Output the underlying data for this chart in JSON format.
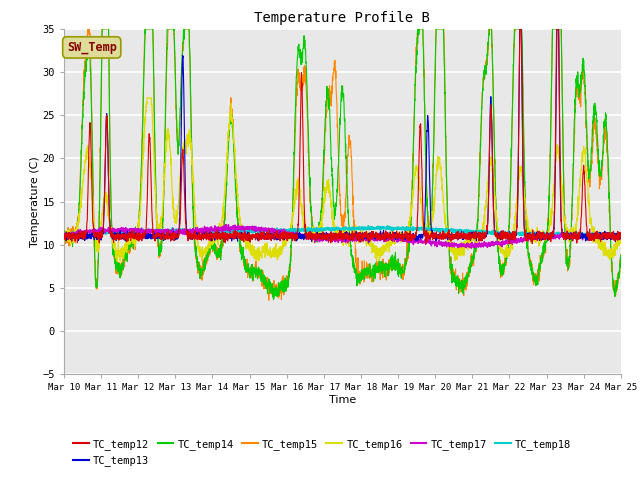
{
  "title": "Temperature Profile B",
  "xlabel": "Time",
  "ylabel": "Temperature (C)",
  "ylim": [
    -5,
    35
  ],
  "xlim": [
    10,
    25
  ],
  "background_color": "#e8e8e8",
  "grid_color": "white",
  "series_colors": {
    "TC_temp12": "#dd0000",
    "TC_temp13": "#0000cc",
    "TC_temp14": "#00cc00",
    "TC_temp15": "#ff8800",
    "TC_temp16": "#dddd00",
    "TC_temp17": "#cc00cc",
    "TC_temp18": "#00cccc"
  },
  "sw_temp_box_facecolor": "#dddd99",
  "sw_temp_box_edgecolor": "#999900",
  "sw_temp_text_color": "#880000",
  "annotation_label": "SW_Temp",
  "yticks": [
    -5,
    0,
    5,
    10,
    15,
    20,
    25,
    30,
    35
  ],
  "xtick_days": [
    10,
    11,
    12,
    13,
    14,
    15,
    16,
    17,
    18,
    19,
    20,
    21,
    22,
    23,
    24,
    25
  ]
}
